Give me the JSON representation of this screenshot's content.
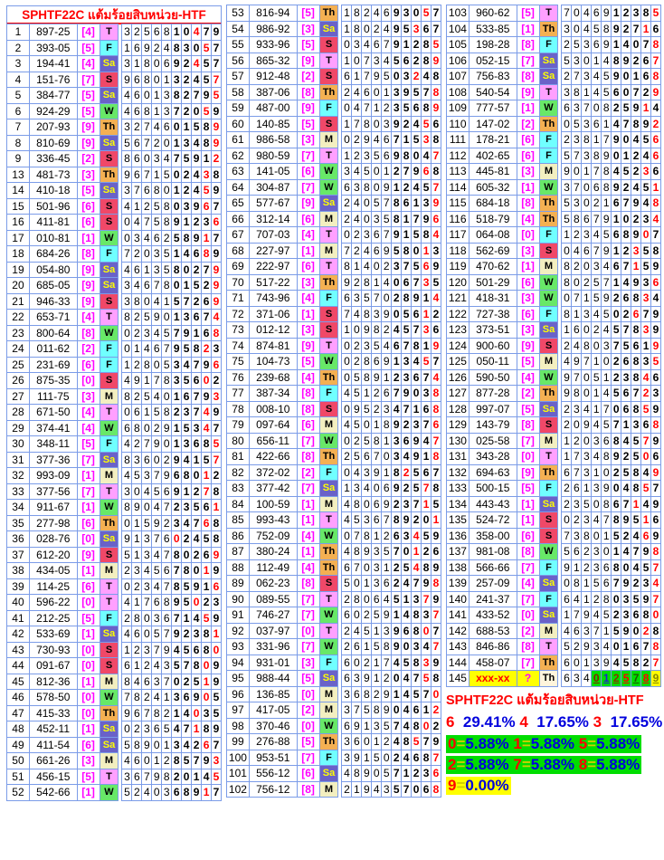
{
  "header": {
    "title": "SPHTF22C  แต้มร้อยสิบหน่วย-HTF"
  },
  "colors": {
    "border": "#7B9CE8",
    "header_red": "#FF0000",
    "bracket_magenta": "#FF00FF",
    "hit_red": "#FF0000",
    "pct_blue": "#0000DD",
    "green_bg": "#00DD00",
    "yellow_bg": "#FFFF00",
    "equals_yellow": "#CFCF00"
  },
  "day_colors": {
    "T": {
      "bg": "#FFA0FF",
      "fg": "#000000"
    },
    "F": {
      "bg": "#70FFFF",
      "fg": "#000000"
    },
    "Sa": {
      "bg": "#6A62C8",
      "fg": "#FFFF00"
    },
    "S": {
      "bg": "#F04868",
      "fg": "#000000"
    },
    "W": {
      "bg": "#68E868",
      "fg": "#000000"
    },
    "Th": {
      "bg": "#F4B052",
      "fg": "#000000"
    },
    "M": {
      "bg": "#F3EFC0",
      "fg": "#000000"
    }
  },
  "special_row": {
    "num_bg": "#FFFF00",
    "num_fg": "#FF0000",
    "bracket_bg": "#FFFF00",
    "bracket_fg": "#FF00FF",
    "day_bg": "#FFF5DC",
    "plain_count": 3,
    "yellow_digit": "9",
    "digit_colors": {
      "0": "#882200",
      "1": "#2222CC",
      "2": "#883300",
      "5": "#FF0000",
      "7": "#225500",
      "8": "#FF0000",
      "9": "#888800"
    }
  },
  "columns": [
    {
      "has_header": true,
      "rows": [
        [
          "1",
          "897-25",
          "4",
          "T",
          "3256810479"
        ],
        [
          "2",
          "393-05",
          "5",
          "F",
          "1692483057"
        ],
        [
          "3",
          "194-41",
          "4",
          "Sa",
          "3180692457"
        ],
        [
          "4",
          "151-76",
          "7",
          "S",
          "9680132457"
        ],
        [
          "5",
          "384-77",
          "5",
          "Sa",
          "4601382795"
        ],
        [
          "6",
          "924-29",
          "5",
          "W",
          "4681372059"
        ],
        [
          "7",
          "207-93",
          "9",
          "Th",
          "3274601589"
        ],
        [
          "8",
          "810-69",
          "9",
          "Sa",
          "5672013489"
        ],
        [
          "9",
          "336-45",
          "2",
          "S",
          "8603475912"
        ],
        [
          "13",
          "481-73",
          "3",
          "Th",
          "9671502438"
        ],
        [
          "14",
          "410-18",
          "5",
          "Sa",
          "3768012459"
        ],
        [
          "15",
          "501-96",
          "6",
          "S",
          "4125803967"
        ],
        [
          "16",
          "411-81",
          "6",
          "S",
          "0475891236"
        ],
        [
          "17",
          "010-81",
          "1",
          "W",
          "0346258917"
        ],
        [
          "18",
          "684-26",
          "8",
          "F",
          "7203514689"
        ],
        [
          "19",
          "054-80",
          "9",
          "Sa",
          "4613580279"
        ],
        [
          "20",
          "685-05",
          "9",
          "Sa",
          "3467801529"
        ],
        [
          "21",
          "946-33",
          "9",
          "S",
          "3804157269"
        ],
        [
          "22",
          "653-71",
          "4",
          "T",
          "8259013674"
        ],
        [
          "23",
          "800-64",
          "8",
          "W",
          "0234579168"
        ],
        [
          "24",
          "011-62",
          "2",
          "F",
          "0146795823"
        ],
        [
          "25",
          "231-69",
          "6",
          "F",
          "1280534796"
        ],
        [
          "26",
          "875-35",
          "0",
          "S",
          "4917835602"
        ],
        [
          "27",
          "111-75",
          "3",
          "M",
          "8254016793"
        ],
        [
          "28",
          "671-50",
          "4",
          "T",
          "0615823749"
        ],
        [
          "29",
          "374-41",
          "4",
          "W",
          "6802915347"
        ],
        [
          "30",
          "348-11",
          "5",
          "F",
          "4279013685"
        ],
        [
          "31",
          "377-36",
          "7",
          "Sa",
          "8360294157"
        ],
        [
          "32",
          "993-09",
          "1",
          "M",
          "4537968012"
        ],
        [
          "33",
          "377-56",
          "7",
          "T",
          "3045691278"
        ],
        [
          "34",
          "911-67",
          "1",
          "W",
          "8904723561"
        ],
        [
          "35",
          "277-98",
          "6",
          "Th",
          "0159234768"
        ],
        [
          "36",
          "028-76",
          "0",
          "Sa",
          "9137602458"
        ],
        [
          "37",
          "612-20",
          "9",
          "S",
          "5134780269"
        ],
        [
          "38",
          "434-05",
          "1",
          "M",
          "2345678019"
        ],
        [
          "39",
          "114-25",
          "6",
          "T",
          "0234785916"
        ],
        [
          "40",
          "596-22",
          "0",
          "T",
          "4176895023"
        ],
        [
          "41",
          "212-25",
          "5",
          "F",
          "2803671459"
        ],
        [
          "42",
          "533-69",
          "1",
          "Sa",
          "4605792381"
        ],
        [
          "43",
          "730-93",
          "0",
          "S",
          "1237945680"
        ],
        [
          "44",
          "091-67",
          "0",
          "S",
          "6124357809"
        ],
        [
          "45",
          "812-36",
          "1",
          "M",
          "8463702519"
        ],
        [
          "46",
          "578-50",
          "0",
          "W",
          "7824136905"
        ],
        [
          "47",
          "415-33",
          "0",
          "Th",
          "9678214035"
        ],
        [
          "48",
          "452-11",
          "1",
          "Sa",
          "0236547189"
        ],
        [
          "49",
          "411-54",
          "6",
          "Sa",
          "5890134267"
        ],
        [
          "50",
          "661-26",
          "3",
          "M",
          "4601285793"
        ],
        [
          "51",
          "456-15",
          "5",
          "T",
          "3679820145"
        ],
        [
          "52",
          "542-66",
          "1",
          "W",
          "5240368917"
        ]
      ]
    },
    {
      "has_header": false,
      "rows": [
        [
          "53",
          "816-94",
          "5",
          "Th",
          "1824693057"
        ],
        [
          "54",
          "986-92",
          "3",
          "Sa",
          "1802495367"
        ],
        [
          "55",
          "933-96",
          "5",
          "S",
          "0346791285"
        ],
        [
          "56",
          "865-32",
          "9",
          "T",
          "1073456289"
        ],
        [
          "57",
          "912-48",
          "2",
          "S",
          "6179503248"
        ],
        [
          "58",
          "387-06",
          "8",
          "Th",
          "2460139578"
        ],
        [
          "59",
          "487-00",
          "9",
          "F",
          "0471235689"
        ],
        [
          "60",
          "140-85",
          "5",
          "S",
          "1780392456"
        ],
        [
          "61",
          "986-58",
          "3",
          "M",
          "0294671538"
        ],
        [
          "62",
          "980-59",
          "7",
          "T",
          "1235698047"
        ],
        [
          "63",
          "141-05",
          "6",
          "W",
          "3450127968"
        ],
        [
          "64",
          "304-87",
          "7",
          "W",
          "6380912457"
        ],
        [
          "65",
          "577-67",
          "9",
          "Sa",
          "2405786139"
        ],
        [
          "66",
          "312-14",
          "6",
          "M",
          "2403581796"
        ],
        [
          "67",
          "707-03",
          "4",
          "T",
          "0236791584"
        ],
        [
          "68",
          "227-97",
          "1",
          "M",
          "7246958013"
        ],
        [
          "69",
          "222-97",
          "6",
          "T",
          "8140237569"
        ],
        [
          "70",
          "517-22",
          "3",
          "Th",
          "9281406735"
        ],
        [
          "71",
          "743-96",
          "4",
          "F",
          "6357028914"
        ],
        [
          "72",
          "371-06",
          "1",
          "S",
          "7483905612"
        ],
        [
          "73",
          "012-12",
          "3",
          "S",
          "1098245736"
        ],
        [
          "74",
          "874-81",
          "9",
          "T",
          "0235467819"
        ],
        [
          "75",
          "104-73",
          "5",
          "W",
          "0286913457"
        ],
        [
          "76",
          "239-68",
          "4",
          "Th",
          "0589123674"
        ],
        [
          "77",
          "387-34",
          "8",
          "F",
          "4512679038"
        ],
        [
          "78",
          "008-10",
          "8",
          "S",
          "0952347168"
        ],
        [
          "79",
          "097-64",
          "6",
          "M",
          "4501892376"
        ],
        [
          "80",
          "656-11",
          "7",
          "W",
          "0258136947"
        ],
        [
          "81",
          "422-66",
          "8",
          "Th",
          "2567034918"
        ],
        [
          "82",
          "372-02",
          "2",
          "F",
          "0439182567"
        ],
        [
          "83",
          "377-42",
          "7",
          "Sa",
          "1340692578"
        ],
        [
          "84",
          "100-59",
          "1",
          "M",
          "4806923715"
        ],
        [
          "85",
          "993-43",
          "1",
          "T",
          "4536789201"
        ],
        [
          "86",
          "752-09",
          "4",
          "W",
          "0781263459"
        ],
        [
          "87",
          "380-24",
          "1",
          "Th",
          "4893570126"
        ],
        [
          "88",
          "112-49",
          "4",
          "Th",
          "6703125489"
        ],
        [
          "89",
          "062-23",
          "8",
          "S",
          "5013624798"
        ],
        [
          "90",
          "089-55",
          "7",
          "T",
          "2806451379"
        ],
        [
          "91",
          "746-27",
          "7",
          "W",
          "6025914837"
        ],
        [
          "92",
          "037-97",
          "0",
          "T",
          "2451396807"
        ],
        [
          "93",
          "331-96",
          "7",
          "W",
          "2615890347"
        ],
        [
          "94",
          "931-01",
          "3",
          "F",
          "6021745839"
        ],
        [
          "95",
          "988-44",
          "5",
          "Sa",
          "6391204758"
        ],
        [
          "96",
          "136-85",
          "0",
          "M",
          "3682914570"
        ],
        [
          "97",
          "417-05",
          "2",
          "M",
          "3758904612"
        ],
        [
          "98",
          "370-46",
          "0",
          "W",
          "6913574802"
        ],
        [
          "99",
          "276-88",
          "5",
          "Th",
          "3601248579"
        ],
        [
          "100",
          "953-51",
          "7",
          "F",
          "3915024687"
        ],
        [
          "101",
          "556-12",
          "6",
          "Sa",
          "4890571236"
        ],
        [
          "102",
          "756-12",
          "8",
          "M",
          "2194357068"
        ]
      ]
    },
    {
      "has_header": false,
      "rows": [
        [
          "103",
          "960-62",
          "5",
          "T",
          "7046912385"
        ],
        [
          "104",
          "533-85",
          "1",
          "Th",
          "3045892716"
        ],
        [
          "105",
          "198-28",
          "8",
          "F",
          "2536914078"
        ],
        [
          "106",
          "052-15",
          "7",
          "Sa",
          "5301489267"
        ],
        [
          "107",
          "756-83",
          "8",
          "Sa",
          "2734590168"
        ],
        [
          "108",
          "540-54",
          "9",
          "T",
          "3814560729"
        ],
        [
          "109",
          "777-57",
          "1",
          "W",
          "6370825914"
        ],
        [
          "110",
          "147-02",
          "2",
          "Th",
          "0536147892"
        ],
        [
          "111",
          "178-21",
          "6",
          "F",
          "2381790456"
        ],
        [
          "112",
          "402-65",
          "6",
          "F",
          "5738901246"
        ],
        [
          "113",
          "445-81",
          "3",
          "M",
          "9017845236"
        ],
        [
          "114",
          "605-32",
          "1",
          "W",
          "3706892451"
        ],
        [
          "115",
          "684-18",
          "8",
          "Th",
          "5302167948"
        ],
        [
          "116",
          "518-79",
          "4",
          "Th",
          "5867910234"
        ],
        [
          "117",
          "064-08",
          "0",
          "F",
          "1234568907"
        ],
        [
          "118",
          "562-69",
          "3",
          "S",
          "0467912358"
        ],
        [
          "119",
          "470-62",
          "1",
          "M",
          "8203467159"
        ],
        [
          "120",
          "501-29",
          "6",
          "W",
          "8025714936"
        ],
        [
          "121",
          "418-31",
          "3",
          "W",
          "0715926834"
        ],
        [
          "122",
          "727-38",
          "6",
          "F",
          "8134502679"
        ],
        [
          "123",
          "373-51",
          "3",
          "Sa",
          "1602457839"
        ],
        [
          "124",
          "900-60",
          "9",
          "S",
          "2480375619"
        ],
        [
          "125",
          "050-11",
          "5",
          "M",
          "4971026835"
        ],
        [
          "126",
          "590-50",
          "4",
          "W",
          "9705123846"
        ],
        [
          "127",
          "877-28",
          "2",
          "Th",
          "9801456723"
        ],
        [
          "128",
          "997-07",
          "5",
          "Sa",
          "2341706859"
        ],
        [
          "129",
          "143-79",
          "8",
          "S",
          "2094571368"
        ],
        [
          "130",
          "025-58",
          "7",
          "M",
          "1203684579"
        ],
        [
          "131",
          "343-28",
          "0",
          "T",
          "1734892506"
        ],
        [
          "132",
          "694-63",
          "9",
          "Th",
          "6731025849"
        ],
        [
          "133",
          "500-15",
          "5",
          "F",
          "2613904857"
        ],
        [
          "134",
          "443-43",
          "1",
          "Sa",
          "2350867149"
        ],
        [
          "135",
          "524-72",
          "1",
          "S",
          "0234789516"
        ],
        [
          "136",
          "358-00",
          "6",
          "S",
          "7380152469"
        ],
        [
          "137",
          "981-08",
          "8",
          "W",
          "5623014798"
        ],
        [
          "138",
          "566-66",
          "7",
          "F",
          "9123680457"
        ],
        [
          "139",
          "257-09",
          "4",
          "Sa",
          "0815679234"
        ],
        [
          "140",
          "241-37",
          "7",
          "F",
          "6412803597"
        ],
        [
          "141",
          "433-52",
          "0",
          "Sa",
          "1794523680"
        ],
        [
          "142",
          "688-53",
          "2",
          "M",
          "4637159028"
        ],
        [
          "143",
          "846-86",
          "8",
          "T",
          "5293401678"
        ],
        [
          "144",
          "458-07",
          "7",
          "Th",
          "6013945827"
        ],
        [
          "145",
          "xxx-xx",
          "?",
          "Th",
          "6340125789"
        ]
      ]
    }
  ],
  "summary": {
    "title": "SPHTF22C  แต้มร้อยสิบหน่วย-HTF",
    "top_stats": [
      [
        "6",
        "29.41%"
      ],
      [
        "4",
        "17.65%"
      ],
      [
        "3",
        "17.65%"
      ]
    ],
    "green_rows": [
      [
        [
          "0",
          "5.88%"
        ],
        [
          "1",
          "5.88%"
        ],
        [
          "5",
          "5.88%"
        ]
      ],
      [
        [
          "2",
          "5.88%"
        ],
        [
          "7",
          "5.88%"
        ],
        [
          "8",
          "5.88%"
        ]
      ]
    ],
    "yellow_row": [
      [
        "9",
        "0.00%"
      ]
    ]
  }
}
